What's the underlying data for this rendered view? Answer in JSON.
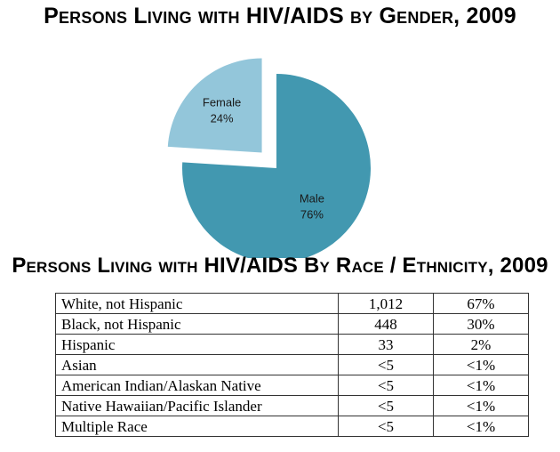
{
  "chart_data": [
    {
      "type": "pie",
      "title": "Persons Living with HIV/AIDS by Gender, 2009",
      "slices": [
        {
          "label": "Male",
          "value": 76,
          "value_label": "76%",
          "color": "#4298b0",
          "exploded": false
        },
        {
          "label": "Female",
          "value": 24,
          "value_label": "24%",
          "color": "#93c6da",
          "exploded": true
        }
      ]
    },
    {
      "type": "table",
      "title": "Persons Living with HIV/AIDS By Race / Ethnicity, 2009",
      "rows": [
        {
          "group": "White, not Hispanic",
          "count": "1,012",
          "percent": "67%"
        },
        {
          "group": "Black, not Hispanic",
          "count": "448",
          "percent": "30%"
        },
        {
          "group": "Hispanic",
          "count": "33",
          "percent": "2%"
        },
        {
          "group": "Asian",
          "count": "<5",
          "percent": "<1%"
        },
        {
          "group": "American Indian/Alaskan Native",
          "count": "<5",
          "percent": "<1%"
        },
        {
          "group": "Native Hawaiian/Pacific Islander",
          "count": "<5",
          "percent": "<1%"
        },
        {
          "group": "Multiple Race",
          "count": "<5",
          "percent": "<1%"
        }
      ]
    }
  ]
}
